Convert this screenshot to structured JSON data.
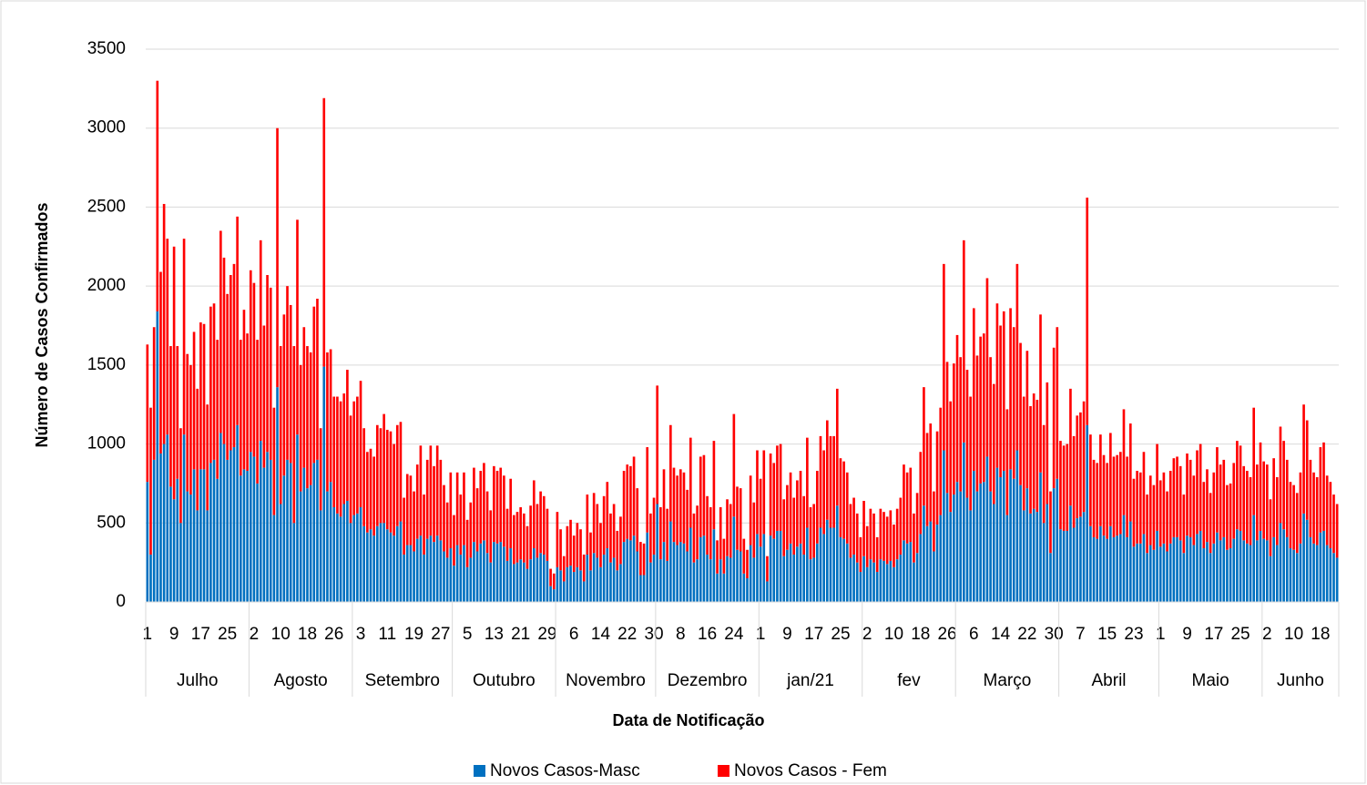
{
  "chart_data": {
    "type": "stacked_bar",
    "y_label": "Número de Casos Confirmados",
    "x_label": "Data de Notificação",
    "ylim": [
      0,
      3500
    ],
    "yticks": [
      0,
      500,
      1000,
      1500,
      2000,
      2500,
      3000,
      3500
    ],
    "grid": true,
    "legend": "bottom",
    "groups": [
      {
        "label": "Julho",
        "count": 31
      },
      {
        "label": "Agosto",
        "count": 31
      },
      {
        "label": "Setembro",
        "count": 30
      },
      {
        "label": "Outubro",
        "count": 31
      },
      {
        "label": "Novembro",
        "count": 30
      },
      {
        "label": "Dezembro",
        "count": 31
      },
      {
        "label": "jan/21",
        "count": 31
      },
      {
        "label": "fev",
        "count": 28
      },
      {
        "label": "Março",
        "count": 31
      },
      {
        "label": "Abril",
        "count": 30
      },
      {
        "label": "Maio",
        "count": 31
      },
      {
        "label": "Junho",
        "count": 23
      }
    ],
    "categories": [
      "1",
      null,
      null,
      null,
      null,
      null,
      null,
      null,
      "9",
      null,
      null,
      null,
      null,
      null,
      null,
      null,
      "17",
      null,
      null,
      null,
      null,
      null,
      null,
      null,
      "25",
      null,
      null,
      null,
      null,
      null,
      null,
      null,
      "2",
      null,
      null,
      null,
      null,
      null,
      null,
      null,
      "10",
      null,
      null,
      null,
      null,
      null,
      null,
      null,
      "18",
      null,
      null,
      null,
      null,
      null,
      null,
      null,
      "26",
      null,
      null,
      null,
      null,
      null,
      null,
      null,
      "3",
      null,
      null,
      null,
      null,
      null,
      null,
      null,
      "11",
      null,
      null,
      null,
      null,
      null,
      null,
      null,
      "19",
      null,
      null,
      null,
      null,
      null,
      null,
      null,
      "27",
      null,
      null,
      null,
      null,
      null,
      null,
      null,
      "5",
      null,
      null,
      null,
      null,
      null,
      null,
      null,
      "13",
      null,
      null,
      null,
      null,
      null,
      null,
      null,
      "21",
      null,
      null,
      null,
      null,
      null,
      null,
      null,
      "29",
      null,
      null,
      null,
      null,
      null,
      null,
      null,
      "6",
      null,
      null,
      null,
      null,
      null,
      null,
      null,
      "14",
      null,
      null,
      null,
      null,
      null,
      null,
      null,
      "22",
      null,
      null,
      null,
      null,
      null,
      null,
      null,
      "30",
      null,
      null,
      null,
      null,
      null,
      null,
      null,
      "8",
      null,
      null,
      null,
      null,
      null,
      null,
      null,
      "16",
      null,
      null,
      null,
      null,
      null,
      null,
      null,
      "24",
      null,
      null,
      null,
      null,
      null,
      null,
      null,
      "1",
      null,
      null,
      null,
      null,
      null,
      null,
      null,
      "9",
      null,
      null,
      null,
      null,
      null,
      null,
      null,
      "17",
      null,
      null,
      null,
      null,
      null,
      null,
      null,
      "25",
      null,
      null,
      null,
      null,
      null,
      null,
      null,
      "2",
      null,
      null,
      null,
      null,
      null,
      null,
      null,
      "10",
      null,
      null,
      null,
      null,
      null,
      null,
      null,
      "18",
      null,
      null,
      null,
      null,
      null,
      null,
      null,
      "26",
      null,
      null,
      null,
      null,
      null,
      null,
      null,
      "6",
      null,
      null,
      null,
      null,
      null,
      null,
      null,
      "14",
      null,
      null,
      null,
      null,
      null,
      null,
      null,
      "22",
      null,
      null,
      null,
      null,
      null,
      null,
      null,
      "30",
      null,
      null,
      null,
      null,
      null,
      null,
      null,
      "7",
      null,
      null,
      null,
      null,
      null,
      null,
      null,
      "15",
      null,
      null,
      null,
      null,
      null,
      null,
      null,
      "23",
      null,
      null,
      null,
      null,
      null,
      null,
      null,
      "1",
      null,
      null,
      null,
      null,
      null,
      null,
      null,
      "9",
      null,
      null,
      null,
      null,
      null,
      null,
      null,
      "17",
      null,
      null,
      null,
      null,
      null,
      null,
      null,
      "25",
      null,
      null,
      null,
      null,
      null,
      null,
      null,
      "2",
      null,
      null,
      null,
      null,
      null,
      null,
      null,
      "10",
      null,
      null,
      null,
      null,
      null,
      null,
      null,
      "18",
      null,
      null,
      null,
      null,
      null
    ],
    "series": [
      {
        "name": "Novos Casos-Masc",
        "color": "#0070c0",
        "values": [
          760,
          300,
          900,
          1840,
          940,
          1000,
          1060,
          730,
          650,
          780,
          500,
          1060,
          700,
          680,
          840,
          580,
          840,
          840,
          580,
          880,
          900,
          780,
          1070,
          1000,
          900,
          960,
          980,
          1120,
          800,
          840,
          830,
          950,
          920,
          750,
          1020,
          850,
          950,
          900,
          550,
          1360,
          620,
          800,
          900,
          880,
          500,
          1060,
          700,
          850,
          720,
          740,
          880,
          900,
          580,
          1490,
          700,
          760,
          600,
          560,
          540,
          620,
          640,
          500,
          550,
          560,
          600,
          480,
          440,
          460,
          420,
          480,
          500,
          500,
          460,
          440,
          420,
          480,
          510,
          300,
          360,
          360,
          320,
          400,
          420,
          300,
          400,
          420,
          380,
          420,
          390,
          320,
          280,
          340,
          230,
          360,
          300,
          360,
          220,
          280,
          380,
          320,
          370,
          390,
          310,
          250,
          380,
          370,
          380,
          350,
          260,
          340,
          240,
          250,
          270,
          250,
          210,
          270,
          340,
          280,
          310,
          300,
          260,
          100,
          80,
          220,
          200,
          130,
          220,
          230,
          190,
          220,
          200,
          130,
          300,
          200,
          310,
          280,
          220,
          300,
          340,
          250,
          280,
          200,
          240,
          380,
          400,
          390,
          420,
          320,
          170,
          170,
          440,
          250,
          300,
          620,
          270,
          380,
          260,
          510,
          380,
          360,
          380,
          370,
          320,
          470,
          250,
          270,
          410,
          420,
          300,
          270,
          460,
          180,
          270,
          180,
          290,
          280,
          540,
          330,
          320,
          180,
          150,
          360,
          280,
          430,
          350,
          430,
          130,
          420,
          400,
          450,
          450,
          290,
          330,
          370,
          300,
          350,
          370,
          300,
          470,
          270,
          280,
          370,
          470,
          430,
          520,
          470,
          470,
          610,
          410,
          400,
          370,
          280,
          300,
          250,
          190,
          290,
          220,
          270,
          250,
          190,
          270,
          260,
          240,
          260,
          220,
          270,
          300,
          390,
          370,
          380,
          250,
          310,
          430,
          610,
          480,
          510,
          320,
          490,
          550,
          960,
          690,
          570,
          680,
          760,
          700,
          1010,
          660,
          580,
          830,
          700,
          750,
          760,
          920,
          700,
          620,
          850,
          790,
          830,
          550,
          840,
          780,
          960,
          740,
          580,
          720,
          560,
          590,
          570,
          820,
          500,
          620,
          310,
          720,
          780,
          460,
          450,
          450,
          610,
          470,
          530,
          540,
          570,
          1120,
          480,
          410,
          400,
          480,
          420,
          400,
          480,
          410,
          420,
          430,
          550,
          410,
          510,
          350,
          370,
          370,
          430,
          310,
          360,
          330,
          450,
          350,
          370,
          320,
          370,
          410,
          410,
          390,
          310,
          420,
          410,
          360,
          430,
          450,
          340,
          380,
          310,
          370,
          440,
          390,
          410,
          330,
          340,
          400,
          460,
          450,
          390,
          370,
          360,
          550,
          390,
          450,
          400,
          390,
          290,
          410,
          360,
          500,
          460,
          410,
          340,
          330,
          310,
          370,
          560,
          520,
          410,
          370,
          360,
          440,
          450,
          360,
          340,
          310,
          280
        ]
      },
      {
        "name": "Novos Casos - Fem",
        "color": "#ff0000",
        "values": [
          870,
          930,
          840,
          1460,
          1150,
          1520,
          1240,
          890,
          1600,
          840,
          600,
          1240,
          870,
          820,
          870,
          770,
          930,
          920,
          670,
          990,
          990,
          880,
          1280,
          1180,
          1050,
          1110,
          1160,
          1320,
          860,
          1010,
          870,
          1150,
          1100,
          910,
          1270,
          900,
          1120,
          1090,
          680,
          1640,
          1000,
          1020,
          1100,
          1000,
          1120,
          1360,
          800,
          890,
          900,
          840,
          990,
          1020,
          520,
          1700,
          880,
          840,
          700,
          740,
          730,
          700,
          830,
          680,
          720,
          740,
          800,
          620,
          510,
          510,
          500,
          640,
          600,
          690,
          630,
          640,
          580,
          640,
          630,
          360,
          450,
          440,
          380,
          470,
          570,
          380,
          500,
          570,
          480,
          570,
          510,
          420,
          350,
          480,
          320,
          460,
          380,
          460,
          300,
          350,
          470,
          400,
          460,
          490,
          390,
          330,
          480,
          460,
          470,
          450,
          330,
          440,
          310,
          320,
          330,
          310,
          270,
          340,
          430,
          340,
          390,
          370,
          330,
          110,
          100,
          350,
          260,
          160,
          260,
          290,
          230,
          280,
          260,
          170,
          380,
          240,
          380,
          340,
          280,
          370,
          420,
          310,
          340,
          250,
          300,
          450,
          470,
          470,
          500,
          400,
          210,
          200,
          540,
          310,
          360,
          750,
          330,
          460,
          330,
          610,
          470,
          440,
          460,
          450,
          390,
          570,
          310,
          340,
          510,
          510,
          370,
          330,
          560,
          210,
          330,
          220,
          360,
          340,
          650,
          400,
          400,
          220,
          180,
          440,
          350,
          530,
          430,
          530,
          160,
          520,
          480,
          540,
          550,
          360,
          410,
          450,
          360,
          420,
          460,
          370,
          570,
          330,
          340,
          460,
          580,
          530,
          630,
          580,
          580,
          740,
          500,
          490,
          450,
          340,
          360,
          310,
          220,
          350,
          260,
          320,
          310,
          220,
          320,
          310,
          300,
          320,
          270,
          320,
          360,
          480,
          450,
          470,
          310,
          380,
          520,
          750,
          590,
          620,
          380,
          590,
          680,
          1180,
          830,
          700,
          830,
          930,
          850,
          1280,
          810,
          720,
          1030,
          860,
          930,
          940,
          1130,
          850,
          760,
          1040,
          960,
          1010,
          670,
          1020,
          960,
          1180,
          900,
          720,
          870,
          680,
          730,
          710,
          1000,
          620,
          770,
          390,
          890,
          960,
          560,
          540,
          550,
          740,
          580,
          650,
          660,
          700,
          1440,
          580,
          490,
          480,
          580,
          510,
          480,
          590,
          510,
          510,
          520,
          670,
          510,
          620,
          430,
          460,
          450,
          520,
          370,
          440,
          410,
          550,
          420,
          450,
          380,
          460,
          500,
          510,
          470,
          370,
          520,
          490,
          440,
          530,
          550,
          420,
          460,
          380,
          450,
          540,
          480,
          490,
          410,
          410,
          480,
          560,
          540,
          470,
          460,
          430,
          680,
          480,
          560,
          490,
          480,
          360,
          500,
          430,
          610,
          560,
          490,
          420,
          410,
          380,
          450,
          690,
          630,
          490,
          450,
          430,
          540,
          560,
          440,
          420,
          370,
          340
        ]
      }
    ]
  }
}
